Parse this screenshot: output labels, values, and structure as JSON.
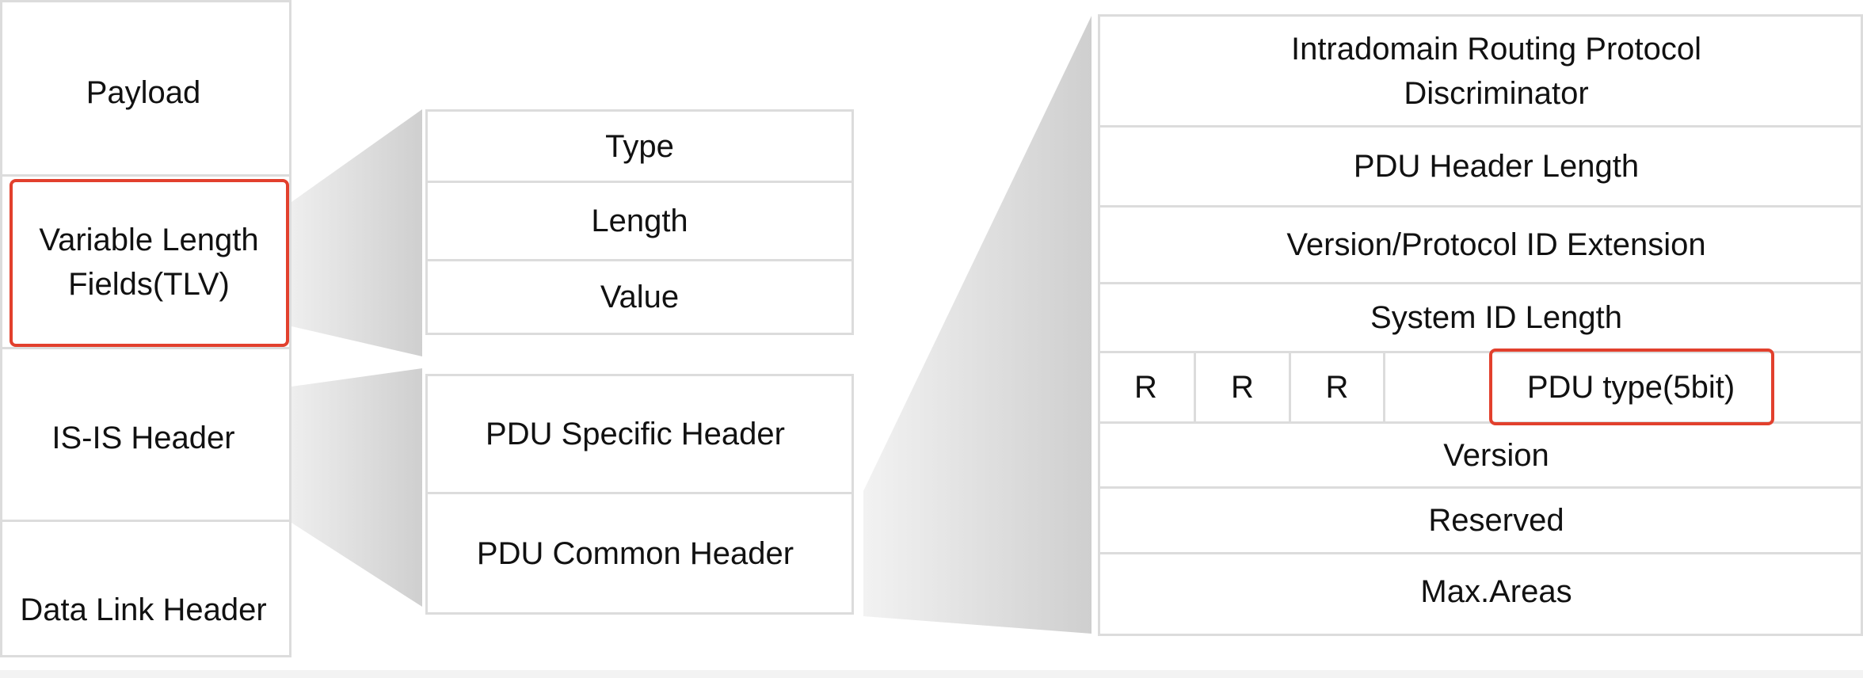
{
  "packet_stack": {
    "payload": "Payload",
    "tlv": "Variable Length\nFields(TLV)",
    "isis_header": "IS-IS Header",
    "data_link_header": "Data Link Header"
  },
  "tlv_fields": {
    "type": "Type",
    "length": "Length",
    "value": "Value"
  },
  "isis_header_parts": {
    "specific": "PDU Specific Header",
    "common": "PDU Common Header"
  },
  "common_header_fields": {
    "irpd": "Intradomain Routing Protocol\nDiscriminator",
    "header_length": "PDU Header Length",
    "version_ext": "Version/Protocol ID Extension",
    "sysid_length": "System ID Length",
    "r1": "R",
    "r2": "R",
    "r3": "R",
    "pdu_type": "PDU type(5bit)",
    "version": "Version",
    "reserved": "Reserved",
    "max_areas": "Max.Areas"
  },
  "colors": {
    "highlight": "#e2402d",
    "border": "#dcdcdc",
    "connector_fill": "#d9d9d9"
  }
}
